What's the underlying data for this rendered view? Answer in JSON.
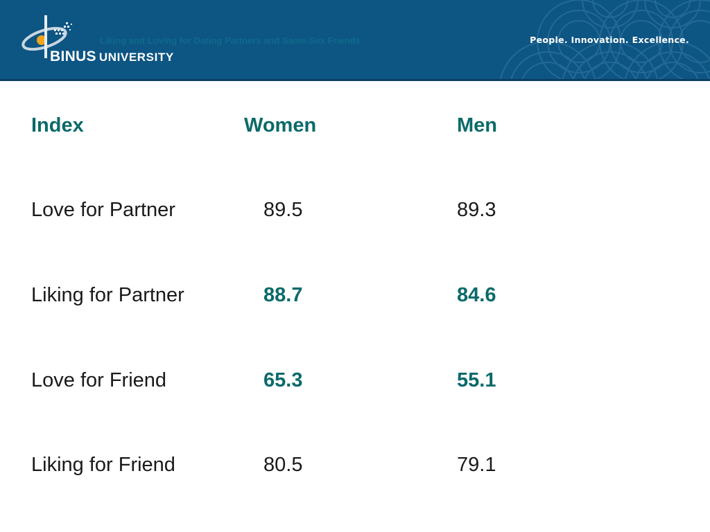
{
  "header": {
    "slide_title": "Liking and Loving for Dating Partners and Same-Sex Friends",
    "logo_text": "BINUS",
    "logo_subtext": "UNIVERSITY",
    "tagline": "People. Innovation. Excellence.",
    "banner_color": "#0d5583",
    "accent_color": "#0b6a6a"
  },
  "table": {
    "headers": [
      "Index",
      "Women",
      "Men"
    ],
    "rows": [
      {
        "index": "Love for Partner",
        "women": "89.5",
        "men": "89.3",
        "highlight": false
      },
      {
        "index": "Liking for Partner",
        "women": "88.7",
        "men": "84.6",
        "highlight": true
      },
      {
        "index": "Love for Friend",
        "women": "65.3",
        "men": "55.1",
        "highlight": true
      },
      {
        "index": "Liking for Friend",
        "women": "80.5",
        "men": "79.1",
        "highlight": false
      }
    ]
  }
}
